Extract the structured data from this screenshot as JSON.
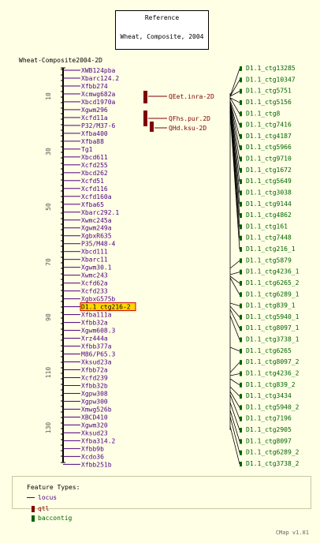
{
  "reference": {
    "title": "Reference",
    "subtitle": "Wheat, Composite, 2004"
  },
  "map_title": "Wheat-Composite2004-2D",
  "ticks": [
    "10",
    "30",
    "50",
    "70",
    "90",
    "110",
    "130"
  ],
  "markers": [
    "XWB124pba",
    "Xbarc124.2",
    "Xfbb274",
    "Xcmwg682a",
    "Xbcd1970a",
    "Xgwm296",
    "Xcfd11a",
    "P32/M37-6",
    "Xfba400",
    "Xfba88",
    "Tg1",
    "Xbcd611",
    "Xcfd255",
    "Xbcd262",
    "Xcfd51",
    "Xcfd116",
    "Xcfd160a",
    "Xfba65",
    "Xbarc292.1",
    "Xwmc245a",
    "Xgwm249a",
    "XgbxR635",
    "P35/M48-4",
    "Xbcd111",
    "Xbarc11",
    "Xgwm30.1",
    "Xwmc243",
    "Xcfd62a",
    "Xcfd233",
    "XgbxG575b",
    "D1.1_ctg216-2",
    "Xfba111a",
    "Xfbb32a",
    "Xgwm608.3",
    "Xrz444a",
    "Xfbb377a",
    "M86/P65.3",
    "Xksud23a",
    "Xfbb72a",
    "Xcfd239",
    "Xfbb32b",
    "Xgpw308",
    "Xgpw300",
    "Xmwg526b",
    "XBCD410",
    "Xgwm320",
    "Xksud23",
    "Xfba314.2",
    "Xfbb9b",
    "Xcdo36",
    "Xfbb251b"
  ],
  "highlight_marker": "D1.1_ctg216-2",
  "qtls": [
    "QEet.inra-2D",
    "QFhs.pur.2D",
    "QHd.ksu-2D"
  ],
  "contigs": [
    "D1.1_ctg13285",
    "D1.1_ctg10347",
    "D1.1_ctg5751",
    "D1.1_ctg5156",
    "D1.1_ctg8",
    "D1.1_ctg7416",
    "D1.1_ctg4187",
    "D1.1_ctg5966",
    "D1.1_ctg9710",
    "D1.1_ctg1672",
    "D1.1_ctg5649",
    "D1.1_ctg3038",
    "D1.1_ctg9144",
    "D1.1_ctg4862",
    "D1.1_ctg161",
    "D1.1_ctg7448",
    "D1.1_ctg216_1",
    "D1.1_ctg5879",
    "D1.1_ctg4236_1",
    "D1.1_ctg6265_2",
    "D1.1_ctg6289_1",
    "D1.1_ctg839_1",
    "D1.1_ctg5940_1",
    "D1.1_ctg8097_1",
    "D1.1_ctg3738_1",
    "D1.1_ctg6265",
    "D1.1_ctg8097_2",
    "D1.1_ctg4236_2",
    "D1.1_ctg839_2",
    "D1.1_ctg3434",
    "D1.1_ctg5940_2",
    "D1.1_ctg7196",
    "D1.1_ctg2905",
    "D1.1_ctg8097",
    "D1.1_ctg6289_2",
    "D1.1_ctg3738_2"
  ],
  "legend": {
    "title": "Feature Types:",
    "items": [
      {
        "label": "locus",
        "color": "#4b0082"
      },
      {
        "label": "qtl",
        "color": "#800000"
      },
      {
        "label": "baccontig",
        "color": "#006400"
      }
    ]
  },
  "footer": "CMap v1.01",
  "colors": {
    "marker": "#4b0082",
    "qtl": "#800000",
    "contig": "#006400",
    "highlight": "#ffd700"
  }
}
